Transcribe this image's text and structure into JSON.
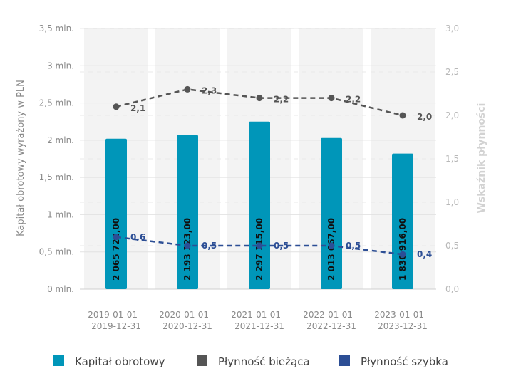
{
  "chart_data": {
    "type": "bar+line",
    "categories": [
      [
        "2019-01-01 –",
        "2019-12-31"
      ],
      [
        "2020-01-01 –",
        "2020-12-31"
      ],
      [
        "2021-01-01 –",
        "2021-12-31"
      ],
      [
        "2022-01-01 –",
        "2022-12-31"
      ],
      [
        "2023-01-01 –",
        "2023-12-31"
      ]
    ],
    "bar_series": {
      "name": "Kapitał obrotowy",
      "color": "#0096b9",
      "values": [
        2065722,
        2193123,
        2297115,
        2013667,
        1830916
      ],
      "labels": [
        "2 065 722,00",
        "2 193 123,00",
        "2 297 115,00",
        "2 013 667,00",
        "1 830 916,00"
      ],
      "displayed_heights": [
        2020000,
        2070000,
        2250000,
        2030000,
        1820000
      ]
    },
    "line_series": [
      {
        "name": "Płynność bieżąca",
        "color": "#555555",
        "values": [
          2.1,
          2.3,
          2.2,
          2.2,
          2.0
        ],
        "labels": [
          "2,1",
          "2,3",
          "2,2",
          "2,2",
          "2,0"
        ]
      },
      {
        "name": "Płynność szybka",
        "color": "#2c4e95",
        "values": [
          0.6,
          0.5,
          0.5,
          0.5,
          0.4
        ],
        "labels": [
          "0,6",
          "0,5",
          "0,5",
          "0,5",
          "0,4"
        ]
      }
    ],
    "y_left": {
      "label": "Kapitał obrotowy wyrażony w PLN",
      "ylim": [
        0,
        3500000
      ],
      "ticks": [
        0,
        500000,
        1000000,
        1500000,
        2000000,
        2500000,
        3000000,
        3500000
      ],
      "tick_labels": [
        "0 mln.",
        "0,5 mln.",
        "1 mln.",
        "1,5 mln.",
        "2 mln.",
        "2,5 mln.",
        "3 mln.",
        "3,5 mln."
      ]
    },
    "y_right": {
      "label": "Wskaźnik płynności",
      "ylim": [
        0,
        3.0
      ],
      "ticks": [
        0,
        0.5,
        1.0,
        1.5,
        2.0,
        2.5,
        3.0
      ],
      "tick_labels": [
        "0,0",
        "0,5",
        "1,0",
        "1,5",
        "2,0",
        "2,5",
        "3,0"
      ]
    },
    "grid": true,
    "legend": {
      "position": "bottom",
      "items": [
        {
          "label": "Kapitał obrotowy",
          "color": "#0096b9"
        },
        {
          "label": "Płynność bieżąca",
          "color": "#555555"
        },
        {
          "label": "Płynność szybka",
          "color": "#2c4e95"
        }
      ]
    }
  }
}
